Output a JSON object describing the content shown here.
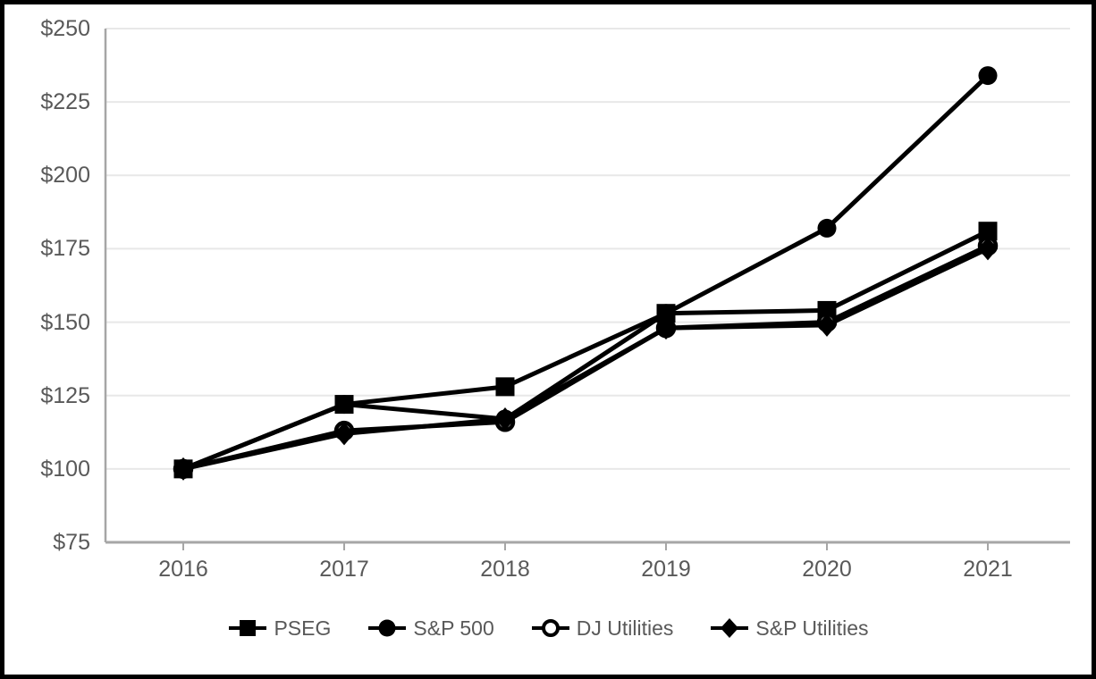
{
  "chart_data": {
    "type": "line",
    "title": "",
    "categories": [
      "2016",
      "2017",
      "2018",
      "2019",
      "2020",
      "2021"
    ],
    "series": [
      {
        "name": "PSEG",
        "marker": "filled-square",
        "values": [
          100,
          122,
          128,
          153,
          154,
          181
        ]
      },
      {
        "name": "S&P 500",
        "marker": "filled-circle",
        "values": [
          100,
          122,
          117,
          153,
          182,
          234
        ]
      },
      {
        "name": "DJ Utilities",
        "marker": "open-circle",
        "values": [
          100,
          113,
          116,
          148,
          150,
          176
        ]
      },
      {
        "name": "S&P Utilities",
        "marker": "filled-diamond",
        "values": [
          100,
          112,
          117,
          148,
          149,
          175
        ]
      }
    ],
    "xlabel": "",
    "ylabel": "",
    "ylim": [
      75,
      250
    ],
    "y_ticks": [
      {
        "value": 250,
        "label": "$250"
      },
      {
        "value": 225,
        "label": "$225"
      },
      {
        "value": 200,
        "label": "$200"
      },
      {
        "value": 175,
        "label": "$175"
      },
      {
        "value": 150,
        "label": "$150"
      },
      {
        "value": 125,
        "label": "$125"
      },
      {
        "value": 100,
        "label": "$100"
      },
      {
        "value": 75,
        "label": "$75"
      }
    ],
    "grid": "horizontal-on",
    "legend_position": "bottom",
    "colors": {
      "line": "#000000",
      "marker_fill": "#000000",
      "open_marker_fill": "#ffffff",
      "grid": "#e8e8e8",
      "axis": "#a6a6a6",
      "label_text": "#595959",
      "frame_border": "#000000",
      "background": "#ffffff"
    }
  }
}
